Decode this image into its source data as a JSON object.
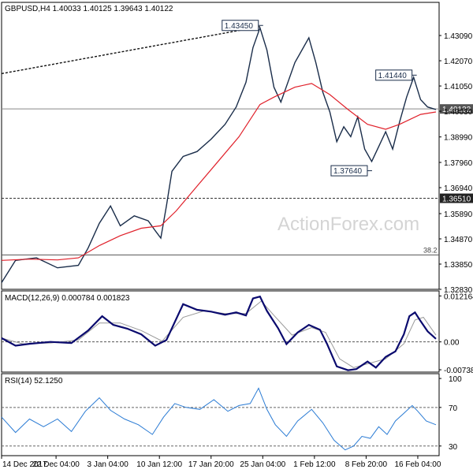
{
  "chart_data": [
    {
      "panel": "price",
      "type": "line",
      "title": "GBPUSD,H4  1.40033 1.40125 1.39643 1.40122",
      "watermark": "ActionForex.com",
      "ylim": [
        1.3283,
        1.4443
      ],
      "y_ticks": [
        "1.43090",
        "1.42070",
        "1.41050",
        "1.40030",
        "1.38990",
        "1.37960",
        "1.36940",
        "1.35890",
        "1.34870",
        "1.33850",
        "1.32830"
      ],
      "y_tick_values": [
        1.4309,
        1.4207,
        1.4105,
        1.4003,
        1.3899,
        1.3796,
        1.3694,
        1.3589,
        1.3487,
        1.3385,
        1.3283
      ],
      "x_ticks": [
        "14 Dec 2017",
        "22 Dec 04:00",
        "3 Jan 04:00",
        "10 Jan 12:00",
        "17 Jan 20:00",
        "25 Jan 04:00",
        "1 Feb 12:00",
        "8 Feb 20:00",
        "16 Feb 04:00"
      ],
      "x_tick_index": [
        0,
        39,
        76,
        113,
        150,
        187,
        224,
        261,
        298
      ],
      "bars_total": 312,
      "series": [
        {
          "name": "GBPUSD H4 close",
          "color": "#1a2d4a",
          "points": [
            [
              0,
              1.331
            ],
            [
              10,
              1.34
            ],
            [
              25,
              1.341
            ],
            [
              40,
              1.337
            ],
            [
              55,
              1.338
            ],
            [
              62,
              1.345
            ],
            [
              70,
              1.355
            ],
            [
              78,
              1.362
            ],
            [
              85,
              1.354
            ],
            [
              95,
              1.358
            ],
            [
              105,
              1.356
            ],
            [
              110,
              1.352
            ],
            [
              114,
              1.349
            ],
            [
              118,
              1.362
            ],
            [
              122,
              1.376
            ],
            [
              130,
              1.382
            ],
            [
              140,
              1.384
            ],
            [
              150,
              1.389
            ],
            [
              160,
              1.395
            ],
            [
              168,
              1.402
            ],
            [
              175,
              1.412
            ],
            [
              180,
              1.426
            ],
            [
              185,
              1.434
            ],
            [
              190,
              1.425
            ],
            [
              195,
              1.41
            ],
            [
              200,
              1.404
            ],
            [
              210,
              1.42
            ],
            [
              220,
              1.43
            ],
            [
              225,
              1.42
            ],
            [
              230,
              1.408
            ],
            [
              235,
              1.4
            ],
            [
              240,
              1.388
            ],
            [
              245,
              1.394
            ],
            [
              250,
              1.39
            ],
            [
              255,
              1.398
            ],
            [
              260,
              1.385
            ],
            [
              265,
              1.38
            ],
            [
              270,
              1.386
            ],
            [
              275,
              1.392
            ],
            [
              280,
              1.385
            ],
            [
              285,
              1.396
            ],
            [
              290,
              1.406
            ],
            [
              295,
              1.414
            ],
            [
              300,
              1.405
            ],
            [
              305,
              1.402
            ],
            [
              311,
              1.401
            ]
          ]
        },
        {
          "name": "moving average",
          "color": "#e0202a",
          "points": [
            [
              0,
              1.34
            ],
            [
              20,
              1.3405
            ],
            [
              40,
              1.3402
            ],
            [
              55,
              1.341
            ],
            [
              70,
              1.346
            ],
            [
              85,
              1.35
            ],
            [
              100,
              1.353
            ],
            [
              114,
              1.354
            ],
            [
              125,
              1.36
            ],
            [
              140,
              1.37
            ],
            [
              155,
              1.38
            ],
            [
              170,
              1.39
            ],
            [
              185,
              1.403
            ],
            [
              195,
              1.406
            ],
            [
              210,
              1.41
            ],
            [
              222,
              1.4115
            ],
            [
              235,
              1.407
            ],
            [
              248,
              1.401
            ],
            [
              262,
              1.395
            ],
            [
              275,
              1.393
            ],
            [
              285,
              1.395
            ],
            [
              300,
              1.399
            ],
            [
              311,
              1.4
            ]
          ]
        },
        {
          "name": "trend line",
          "color": "#111111",
          "style": "dashed",
          "points": [
            [
              0,
              1.4155
            ],
            [
              185,
              1.4345
            ]
          ]
        }
      ],
      "horizontal_lines": [
        {
          "value": 1.40122,
          "label": "1.40122",
          "style": "solid",
          "color": "#888888"
        },
        {
          "value": 1.3651,
          "label": "1.36510",
          "style": "dashed",
          "color": "#333333"
        },
        {
          "value": 1.3422,
          "label": "38.2",
          "style": "solid",
          "color": "#555555"
        }
      ],
      "annotations": [
        {
          "label": "1.43450",
          "x": 185,
          "value": 1.4345
        },
        {
          "label": "1.41440",
          "x": 295,
          "value": 1.4144
        },
        {
          "label": "1.37640",
          "x": 263,
          "value": 1.3764
        }
      ]
    },
    {
      "panel": "macd",
      "type": "line",
      "title": "MACD(12,26,9) 0.000784 0.001823",
      "ylim": [
        -0.008,
        0.0135
      ],
      "y_ticks": [
        "0.012164",
        "0.00",
        "-0.007384"
      ],
      "y_tick_values": [
        0.012164,
        0.0,
        -0.007384
      ],
      "series": [
        {
          "name": "MACD",
          "color": "#0a0a6e",
          "points": [
            [
              0,
              0.001
            ],
            [
              10,
              -0.001
            ],
            [
              20,
              -0.0005
            ],
            [
              35,
              0.0
            ],
            [
              50,
              -0.0003
            ],
            [
              62,
              0.003
            ],
            [
              72,
              0.0068
            ],
            [
              80,
              0.0045
            ],
            [
              90,
              0.0035
            ],
            [
              100,
              0.002
            ],
            [
              110,
              -0.001
            ],
            [
              118,
              0.0005
            ],
            [
              130,
              0.01
            ],
            [
              140,
              0.0085
            ],
            [
              150,
              0.008
            ],
            [
              160,
              0.0072
            ],
            [
              168,
              0.0078
            ],
            [
              175,
              0.007
            ],
            [
              180,
              0.0115
            ],
            [
              185,
              0.012
            ],
            [
              190,
              0.0082
            ],
            [
              198,
              0.0036
            ],
            [
              204,
              -0.0006
            ],
            [
              212,
              0.0025
            ],
            [
              220,
              0.0045
            ],
            [
              228,
              0.0032
            ],
            [
              233,
              -0.0005
            ],
            [
              240,
              -0.0065
            ],
            [
              248,
              -0.0075
            ],
            [
              254,
              -0.0072
            ],
            [
              262,
              -0.0052
            ],
            [
              268,
              -0.0068
            ],
            [
              275,
              -0.004
            ],
            [
              282,
              -0.0025
            ],
            [
              288,
              0.002
            ],
            [
              292,
              0.0068
            ],
            [
              296,
              0.0078
            ],
            [
              300,
              0.0055
            ],
            [
              305,
              0.0028
            ],
            [
              311,
              0.0008
            ]
          ]
        },
        {
          "name": "Signal",
          "color": "#999999",
          "points": [
            [
              0,
              0.001
            ],
            [
              15,
              -0.0005
            ],
            [
              35,
              -0.0003
            ],
            [
              55,
              0.0005
            ],
            [
              70,
              0.005
            ],
            [
              85,
              0.005
            ],
            [
              100,
              0.003
            ],
            [
              115,
              0.0002
            ],
            [
              130,
              0.0065
            ],
            [
              145,
              0.0082
            ],
            [
              160,
              0.0075
            ],
            [
              175,
              0.0075
            ],
            [
              186,
              0.0108
            ],
            [
              195,
              0.007
            ],
            [
              208,
              0.0018
            ],
            [
              222,
              0.0038
            ],
            [
              232,
              0.0025
            ],
            [
              242,
              -0.0045
            ],
            [
              252,
              -0.0068
            ],
            [
              262,
              -0.0058
            ],
            [
              275,
              -0.0045
            ],
            [
              288,
              -0.0005
            ],
            [
              296,
              0.0058
            ],
            [
              302,
              0.0065
            ],
            [
              311,
              0.0018
            ]
          ]
        }
      ],
      "zero_line": 0.0
    },
    {
      "panel": "rsi",
      "type": "line",
      "title": "RSI(14) 52.1250",
      "ylim": [
        20,
        105
      ],
      "y_ticks": [
        "100",
        "70",
        "30"
      ],
      "y_tick_values": [
        100,
        70,
        30
      ],
      "levels": [
        70,
        30
      ],
      "series": [
        {
          "name": "RSI(14)",
          "color": "#2a7bd4",
          "points": [
            [
              0,
              60
            ],
            [
              10,
              44
            ],
            [
              20,
              58
            ],
            [
              30,
              50
            ],
            [
              40,
              58
            ],
            [
              50,
              45
            ],
            [
              60,
              66
            ],
            [
              70,
              80
            ],
            [
              78,
              67
            ],
            [
              88,
              58
            ],
            [
              98,
              52
            ],
            [
              108,
              42
            ],
            [
              116,
              60
            ],
            [
              124,
              74
            ],
            [
              132,
              70
            ],
            [
              142,
              68
            ],
            [
              152,
              78
            ],
            [
              162,
              66
            ],
            [
              170,
              72
            ],
            [
              178,
              74
            ],
            [
              184,
              90
            ],
            [
              190,
              68
            ],
            [
              196,
              52
            ],
            [
              204,
              40
            ],
            [
              212,
              56
            ],
            [
              222,
              68
            ],
            [
              230,
              54
            ],
            [
              238,
              36
            ],
            [
              246,
              26
            ],
            [
              252,
              30
            ],
            [
              258,
              40
            ],
            [
              264,
              38
            ],
            [
              270,
              50
            ],
            [
              276,
              42
            ],
            [
              282,
              56
            ],
            [
              288,
              64
            ],
            [
              294,
              72
            ],
            [
              298,
              66
            ],
            [
              304,
              56
            ],
            [
              311,
              52
            ]
          ]
        }
      ]
    }
  ]
}
